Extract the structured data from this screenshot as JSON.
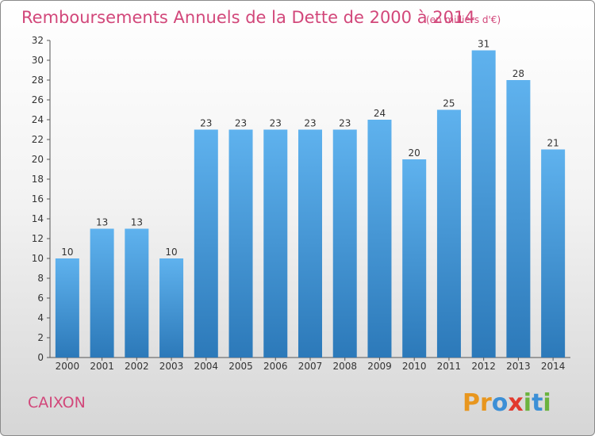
{
  "chart_data": {
    "type": "bar",
    "title": "Remboursements Annuels de la Dette de 2000 à 2014",
    "subtitle": "(en milliers d'€)",
    "xlabel": "",
    "ylabel": "",
    "categories": [
      "2000",
      "2001",
      "2002",
      "2003",
      "2004",
      "2005",
      "2006",
      "2007",
      "2008",
      "2009",
      "2010",
      "2011",
      "2012",
      "2013",
      "2014"
    ],
    "values": [
      10,
      13,
      13,
      10,
      23,
      23,
      23,
      23,
      23,
      24,
      20,
      25,
      31,
      28,
      21
    ],
    "ylim": [
      0,
      32
    ],
    "ytick_step": 2,
    "grid": false,
    "bar_color": "#4a9fdf"
  },
  "footer": {
    "commune": "CAIXON",
    "logo_letters": [
      "P",
      "r",
      "o",
      "x",
      "i",
      "t",
      "i"
    ]
  },
  "colors": {
    "title": "#d2477a",
    "bar_top": "#5fb2ee",
    "bar_bottom": "#2c79b9",
    "logo": [
      "#e8961e",
      "#e8961e",
      "#3b8fd6",
      "#e23a2e",
      "#6cb33f",
      "#3b8fd6",
      "#6cb33f"
    ]
  }
}
